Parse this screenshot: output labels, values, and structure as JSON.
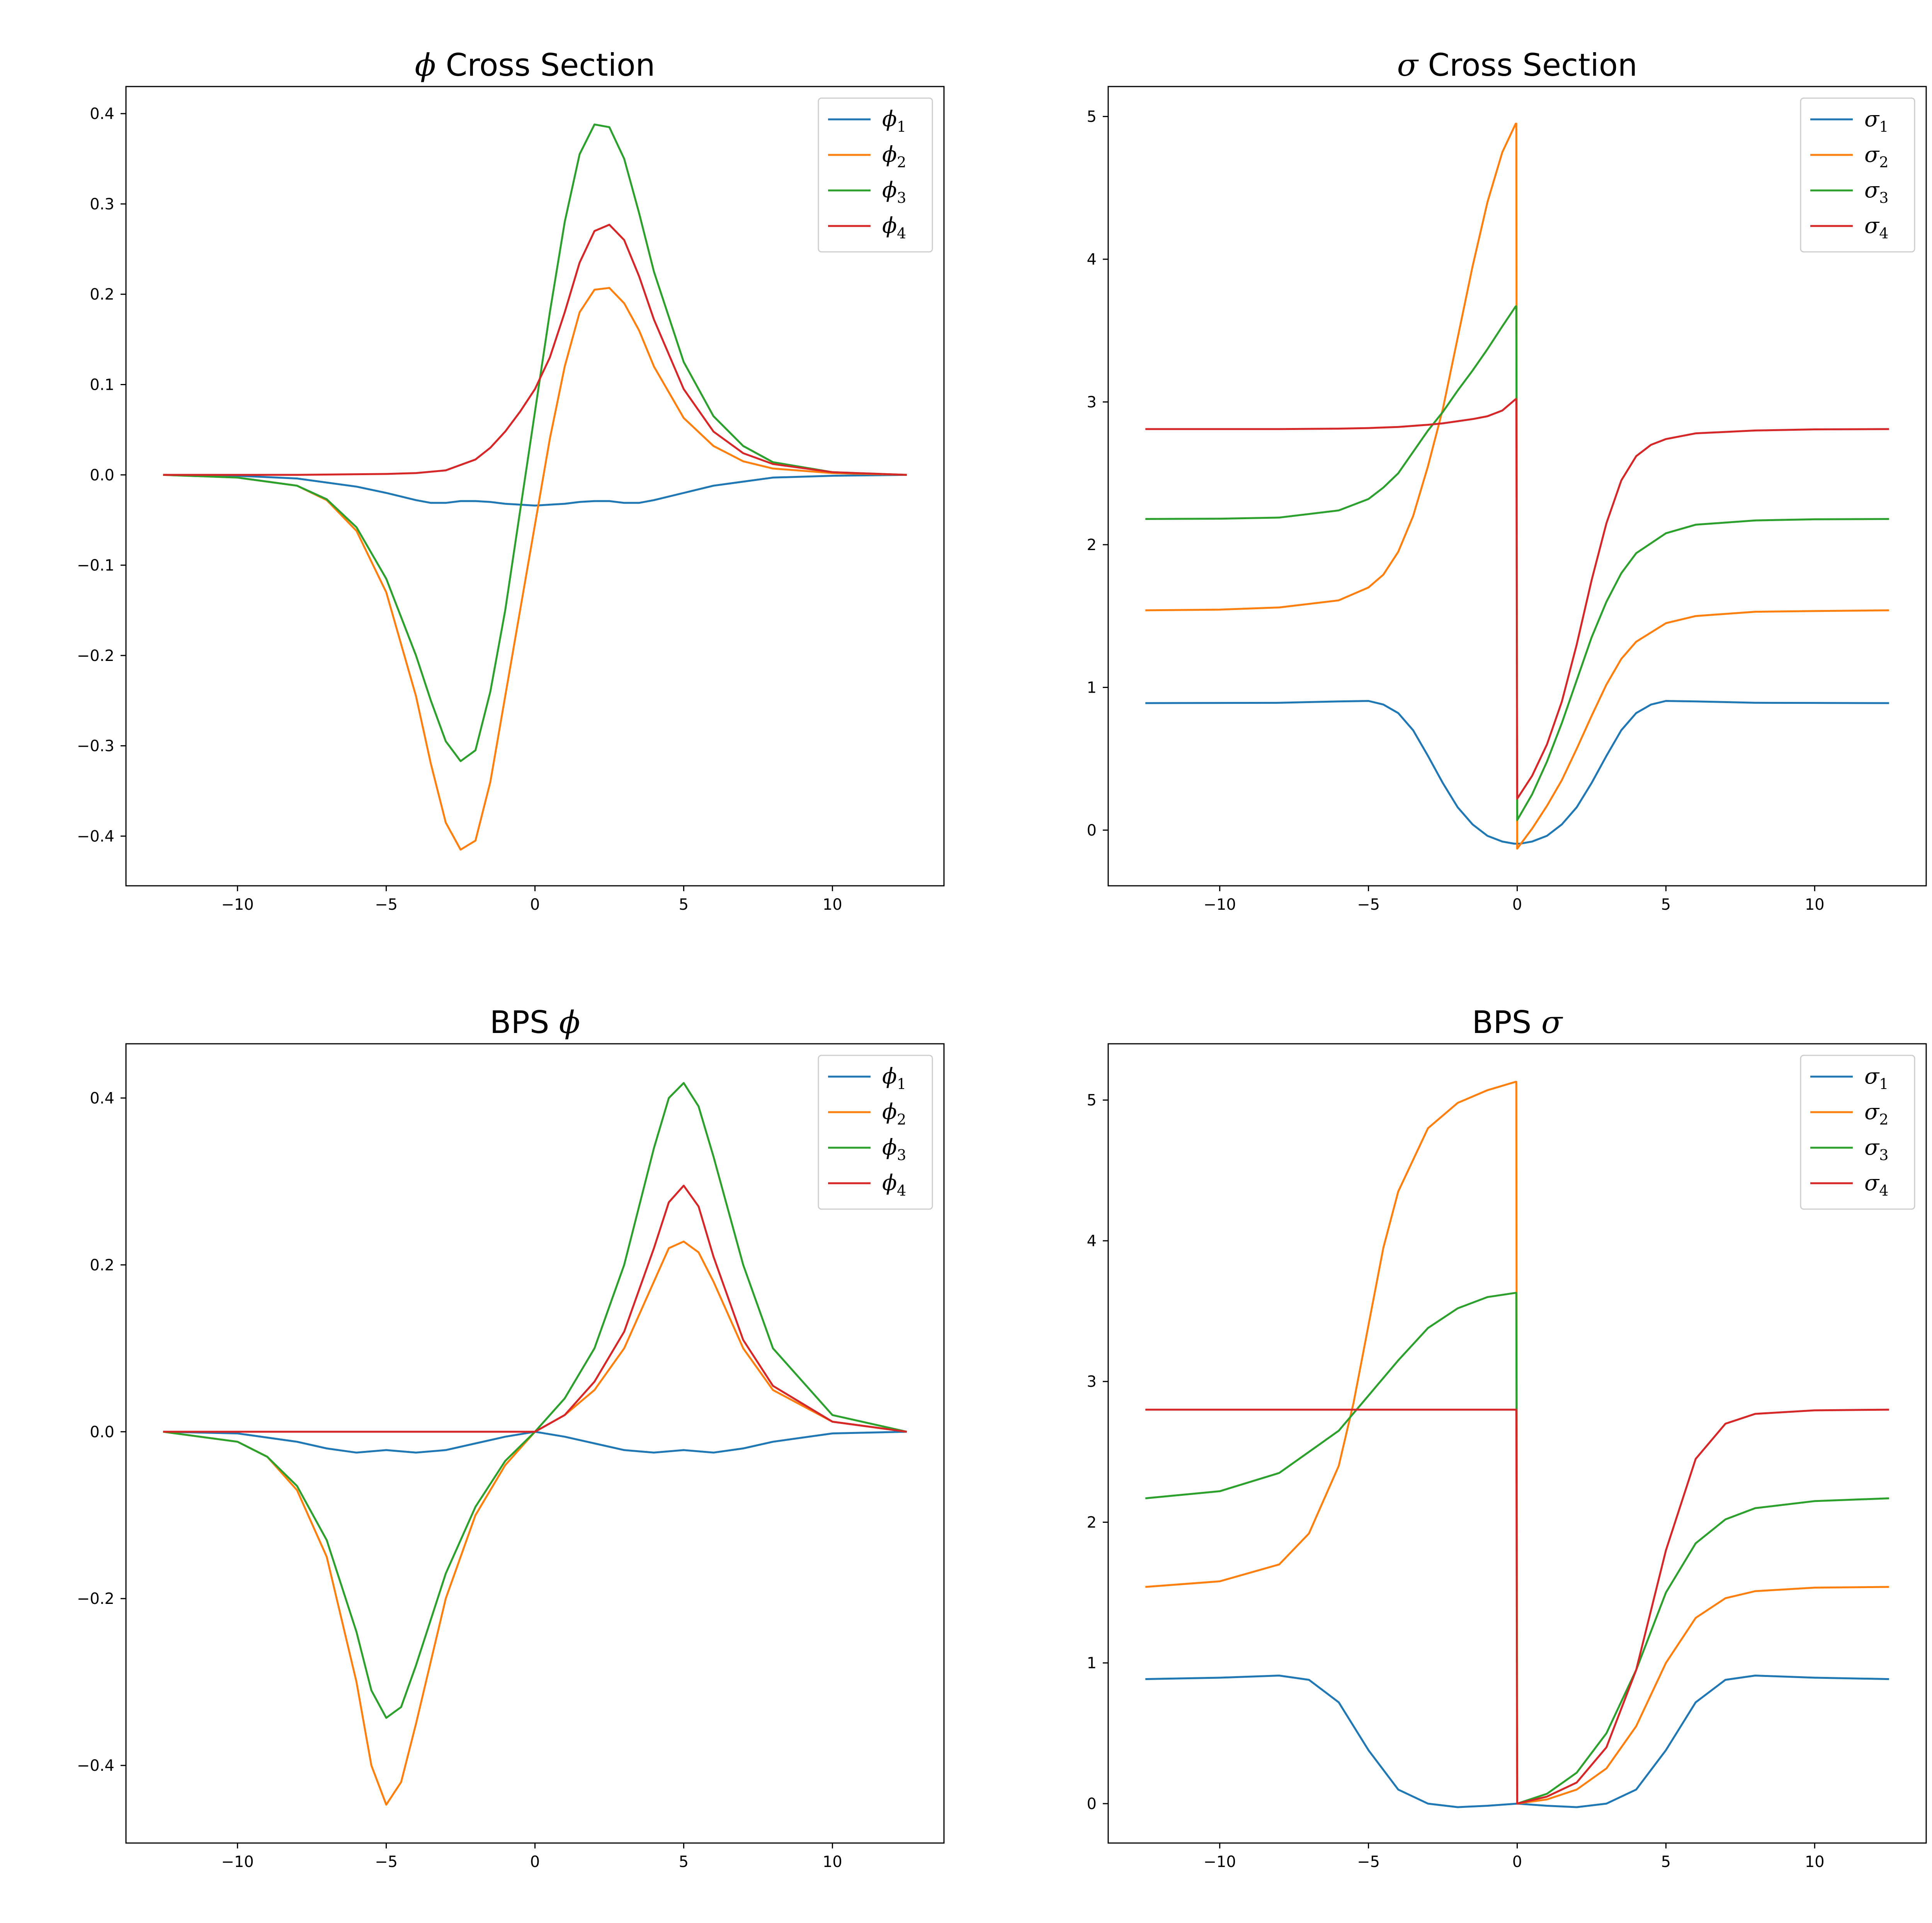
{
  "figure": {
    "colors": [
      "#1f77b4",
      "#ff7f0e",
      "#2ca02c",
      "#d62728"
    ]
  },
  "chart_data": [
    {
      "type": "line",
      "title": "ϕ Cross Section",
      "title_parts": {
        "symbol": "ϕ",
        "text": " Cross Section"
      },
      "xlim": [
        -13.75,
        13.75
      ],
      "ylim": [
        -0.455,
        0.43
      ],
      "xticks": [
        -10,
        -5,
        0,
        5,
        10
      ],
      "xtick_labels": [
        "−10",
        "−5",
        "0",
        "5",
        "10"
      ],
      "yticks": [
        -0.4,
        -0.3,
        -0.2,
        -0.1,
        0.0,
        0.1,
        0.2,
        0.3,
        0.4
      ],
      "ytick_labels": [
        "−0.4",
        "−0.3",
        "−0.2",
        "−0.1",
        "0.0",
        "0.1",
        "0.2",
        "0.3",
        "0.4"
      ],
      "legend_position": "top-right",
      "series": [
        {
          "name": "ϕ1",
          "symbol": "ϕ",
          "sub": "1",
          "x": [
            -12.5,
            -10,
            -8,
            -6,
            -5,
            -4,
            -3.5,
            -3,
            -2.5,
            -2,
            -1.5,
            -1,
            -0.5,
            0,
            0.5,
            1,
            1.5,
            2,
            2.5,
            3,
            3.5,
            4,
            5,
            6,
            8,
            10,
            12.5
          ],
          "y": [
            0,
            -0.001,
            -0.004,
            -0.013,
            -0.02,
            -0.028,
            -0.031,
            -0.031,
            -0.029,
            -0.029,
            -0.03,
            -0.032,
            -0.033,
            -0.034,
            -0.033,
            -0.032,
            -0.03,
            -0.029,
            -0.029,
            -0.031,
            -0.031,
            -0.028,
            -0.02,
            -0.012,
            -0.003,
            -0.001,
            0
          ]
        },
        {
          "name": "ϕ2",
          "symbol": "ϕ",
          "sub": "2",
          "x": [
            -12.5,
            -10,
            -8,
            -7,
            -6,
            -5,
            -4,
            -3.5,
            -3,
            -2.5,
            -2,
            -1.5,
            -1,
            -0.5,
            0,
            0.5,
            1,
            1.5,
            2,
            2.5,
            3,
            3.5,
            4,
            5,
            6,
            7,
            8,
            10,
            12.5
          ],
          "y": [
            0,
            -0.003,
            -0.012,
            -0.028,
            -0.062,
            -0.13,
            -0.245,
            -0.32,
            -0.385,
            -0.415,
            -0.405,
            -0.34,
            -0.245,
            -0.15,
            -0.055,
            0.04,
            0.12,
            0.18,
            0.205,
            0.207,
            0.19,
            0.16,
            0.12,
            0.063,
            0.032,
            0.015,
            0.007,
            0.002,
            0
          ]
        },
        {
          "name": "ϕ3",
          "symbol": "ϕ",
          "sub": "3",
          "x": [
            -12.5,
            -10,
            -8,
            -7,
            -6,
            -5,
            -4,
            -3.5,
            -3,
            -2.5,
            -2,
            -1.5,
            -1,
            -0.5,
            0,
            0.5,
            1,
            1.5,
            2,
            2.5,
            3,
            3.5,
            4,
            5,
            6,
            7,
            8,
            10,
            12.5
          ],
          "y": [
            0,
            -0.003,
            -0.012,
            -0.027,
            -0.058,
            -0.115,
            -0.2,
            -0.25,
            -0.295,
            -0.317,
            -0.305,
            -0.24,
            -0.15,
            -0.04,
            0.07,
            0.18,
            0.28,
            0.355,
            0.388,
            0.385,
            0.35,
            0.29,
            0.225,
            0.125,
            0.065,
            0.032,
            0.014,
            0.003,
            0
          ]
        },
        {
          "name": "ϕ4",
          "symbol": "ϕ",
          "sub": "4",
          "x": [
            -12.5,
            -8,
            -5,
            -4,
            -3,
            -2,
            -1.5,
            -1,
            -0.5,
            0,
            0.5,
            1,
            1.5,
            2,
            2.5,
            3,
            3.5,
            4,
            5,
            6,
            7,
            8,
            10,
            12.5
          ],
          "y": [
            0,
            0,
            0.001,
            0.002,
            0.005,
            0.017,
            0.03,
            0.048,
            0.07,
            0.095,
            0.13,
            0.18,
            0.235,
            0.27,
            0.277,
            0.26,
            0.22,
            0.172,
            0.095,
            0.048,
            0.024,
            0.012,
            0.003,
            0
          ]
        }
      ]
    },
    {
      "type": "line",
      "title": "σ Cross Section",
      "title_parts": {
        "symbol": "σ",
        "text": " Cross Section"
      },
      "xlim": [
        -13.75,
        13.75
      ],
      "ylim": [
        -0.39,
        5.21
      ],
      "xticks": [
        -10,
        -5,
        0,
        5,
        10
      ],
      "xtick_labels": [
        "−10",
        "−5",
        "0",
        "5",
        "10"
      ],
      "yticks": [
        0,
        1,
        2,
        3,
        4,
        5
      ],
      "ytick_labels": [
        "0",
        "1",
        "2",
        "3",
        "4",
        "5"
      ],
      "legend_position": "top-right",
      "series": [
        {
          "name": "σ1",
          "symbol": "σ",
          "sub": "1",
          "x": [
            -12.5,
            -8,
            -6,
            -5,
            -4.5,
            -4,
            -3.5,
            -3,
            -2.5,
            -2,
            -1.5,
            -1,
            -0.5,
            -0.1,
            0.1,
            0.5,
            1,
            1.5,
            2,
            2.5,
            3,
            3.5,
            4,
            4.5,
            5,
            6,
            8,
            12.5
          ],
          "y": [
            0.89,
            0.892,
            0.902,
            0.905,
            0.88,
            0.82,
            0.7,
            0.52,
            0.33,
            0.16,
            0.04,
            -0.04,
            -0.08,
            -0.095,
            -0.095,
            -0.08,
            -0.04,
            0.04,
            0.16,
            0.33,
            0.52,
            0.7,
            0.82,
            0.88,
            0.905,
            0.902,
            0.892,
            0.89
          ]
        },
        {
          "name": "σ2",
          "symbol": "σ",
          "sub": "2",
          "x": [
            -12.5,
            -10,
            -8,
            -6,
            -5,
            -4.5,
            -4,
            -3.5,
            -3,
            -2.5,
            -2,
            -1.5,
            -1,
            -0.5,
            -0.05,
            -0.03,
            0,
            0.5,
            1,
            1.5,
            2,
            2.5,
            3,
            3.5,
            4,
            5,
            6,
            8,
            10,
            12.5
          ],
          "y": [
            1.54,
            1.545,
            1.56,
            1.61,
            1.7,
            1.79,
            1.95,
            2.2,
            2.55,
            2.95,
            3.45,
            3.95,
            4.4,
            4.75,
            4.95,
            4.95,
            -0.13,
            0.01,
            0.17,
            0.35,
            0.57,
            0.8,
            1.02,
            1.2,
            1.32,
            1.45,
            1.5,
            1.53,
            1.535,
            1.54
          ]
        },
        {
          "name": "σ3",
          "symbol": "σ",
          "sub": "3",
          "x": [
            -12.5,
            -10,
            -8,
            -6,
            -5,
            -4.5,
            -4,
            -3.5,
            -3,
            -2.5,
            -2,
            -1.5,
            -1,
            -0.5,
            -0.05,
            -0.03,
            0,
            0.5,
            1,
            1.5,
            2,
            2.5,
            3,
            3.5,
            4,
            5,
            6,
            8,
            10,
            12.5
          ],
          "y": [
            2.18,
            2.182,
            2.19,
            2.24,
            2.32,
            2.4,
            2.5,
            2.65,
            2.8,
            2.93,
            3.08,
            3.22,
            3.37,
            3.53,
            3.67,
            3.67,
            0.07,
            0.25,
            0.48,
            0.75,
            1.05,
            1.35,
            1.6,
            1.8,
            1.94,
            2.08,
            2.14,
            2.17,
            2.178,
            2.18
          ]
        },
        {
          "name": "σ4",
          "symbol": "σ",
          "sub": "4",
          "x": [
            -12.5,
            -10,
            -8,
            -6,
            -5,
            -4,
            -3,
            -2.5,
            -2,
            -1.5,
            -1,
            -0.5,
            -0.05,
            -0.03,
            0,
            0.5,
            1,
            1.5,
            2,
            2.5,
            3,
            3.5,
            4,
            4.5,
            5,
            6,
            8,
            10,
            12.5
          ],
          "y": [
            2.81,
            2.81,
            2.81,
            2.813,
            2.817,
            2.825,
            2.84,
            2.85,
            2.865,
            2.88,
            2.9,
            2.94,
            3.02,
            3.02,
            0.22,
            0.38,
            0.6,
            0.9,
            1.3,
            1.75,
            2.15,
            2.45,
            2.62,
            2.7,
            2.74,
            2.78,
            2.8,
            2.808,
            2.81
          ]
        }
      ]
    },
    {
      "type": "line",
      "title": "BPS ϕ",
      "title_parts": {
        "symbol": "ϕ",
        "text": "BPS "
      },
      "xlim": [
        -13.75,
        13.75
      ],
      "ylim": [
        -0.493,
        0.465
      ],
      "xticks": [
        -10,
        -5,
        0,
        5,
        10
      ],
      "xtick_labels": [
        "−10",
        "−5",
        "0",
        "5",
        "10"
      ],
      "yticks": [
        -0.4,
        -0.2,
        0.0,
        0.2,
        0.4
      ],
      "ytick_labels": [
        "−0.4",
        "−0.2",
        "0.0",
        "0.2",
        "0.4"
      ],
      "legend_position": "top-right",
      "series": [
        {
          "name": "ϕ1",
          "symbol": "ϕ",
          "sub": "1",
          "x": [
            -12.5,
            -10,
            -8,
            -7,
            -6,
            -5,
            -4,
            -3,
            -2,
            -1,
            0,
            1,
            2,
            3,
            4,
            5,
            6,
            7,
            8,
            10,
            12.5
          ],
          "y": [
            0,
            -0.002,
            -0.012,
            -0.02,
            -0.025,
            -0.022,
            -0.025,
            -0.022,
            -0.014,
            -0.006,
            0,
            -0.006,
            -0.014,
            -0.022,
            -0.025,
            -0.022,
            -0.025,
            -0.02,
            -0.012,
            -0.002,
            0
          ]
        },
        {
          "name": "ϕ2",
          "symbol": "ϕ",
          "sub": "2",
          "x": [
            -12.5,
            -10,
            -9,
            -8,
            -7,
            -6,
            -5.5,
            -5,
            -4.5,
            -4,
            -3,
            -2,
            -1,
            0,
            1,
            2,
            3,
            4,
            4.5,
            5,
            5.5,
            6,
            7,
            8,
            10,
            12.5
          ],
          "y": [
            0,
            -0.012,
            -0.03,
            -0.07,
            -0.15,
            -0.3,
            -0.4,
            -0.447,
            -0.42,
            -0.35,
            -0.2,
            -0.1,
            -0.04,
            0,
            0.02,
            0.05,
            0.1,
            0.18,
            0.22,
            0.228,
            0.215,
            0.18,
            0.1,
            0.05,
            0.012,
            0
          ]
        },
        {
          "name": "ϕ3",
          "symbol": "ϕ",
          "sub": "3",
          "x": [
            -12.5,
            -10,
            -9,
            -8,
            -7,
            -6,
            -5.5,
            -5,
            -4.5,
            -4,
            -3,
            -2,
            -1,
            0,
            1,
            2,
            3,
            4,
            4.5,
            5,
            5.5,
            6,
            7,
            8,
            10,
            12.5
          ],
          "y": [
            0,
            -0.012,
            -0.03,
            -0.065,
            -0.13,
            -0.24,
            -0.31,
            -0.343,
            -0.33,
            -0.28,
            -0.17,
            -0.09,
            -0.035,
            0,
            0.04,
            0.1,
            0.2,
            0.34,
            0.4,
            0.418,
            0.39,
            0.33,
            0.2,
            0.1,
            0.02,
            0
          ]
        },
        {
          "name": "ϕ4",
          "symbol": "ϕ",
          "sub": "4",
          "x": [
            -12.5,
            -10,
            -5,
            -2,
            0,
            1,
            2,
            3,
            4,
            4.5,
            5,
            5.5,
            6,
            7,
            8,
            10,
            12.5
          ],
          "y": [
            0,
            0,
            0,
            0,
            0,
            0.02,
            0.06,
            0.12,
            0.22,
            0.275,
            0.295,
            0.27,
            0.21,
            0.11,
            0.055,
            0.012,
            0
          ]
        }
      ]
    },
    {
      "type": "line",
      "title": "BPS σ",
      "title_parts": {
        "symbol": "σ",
        "text": "BPS "
      },
      "xlim": [
        -13.75,
        13.75
      ],
      "ylim": [
        -0.28,
        5.4
      ],
      "xticks": [
        -10,
        -5,
        0,
        5,
        10
      ],
      "xtick_labels": [
        "−10",
        "−5",
        "0",
        "5",
        "10"
      ],
      "yticks": [
        0,
        1,
        2,
        3,
        4,
        5
      ],
      "ytick_labels": [
        "0",
        "1",
        "2",
        "3",
        "4",
        "5"
      ],
      "legend_position": "top-right",
      "series": [
        {
          "name": "σ1",
          "symbol": "σ",
          "sub": "1",
          "x": [
            -12.5,
            -10,
            -8,
            -7,
            -6,
            -5,
            -4,
            -3,
            -2,
            -1,
            0,
            1,
            2,
            3,
            4,
            5,
            6,
            7,
            8,
            10,
            12.5
          ],
          "y": [
            0.885,
            0.895,
            0.91,
            0.88,
            0.72,
            0.38,
            0.1,
            0.0,
            -0.025,
            -0.015,
            0,
            -0.015,
            -0.025,
            0.0,
            0.1,
            0.38,
            0.72,
            0.88,
            0.91,
            0.895,
            0.885
          ]
        },
        {
          "name": "σ2",
          "symbol": "σ",
          "sub": "2",
          "x": [
            -12.5,
            -10,
            -8,
            -7,
            -6,
            -5.5,
            -5,
            -4.5,
            -4,
            -3,
            -2,
            -1,
            -0.05,
            -0.03,
            0,
            1,
            2,
            3,
            4,
            5,
            6,
            7,
            8,
            10,
            12.5
          ],
          "y": [
            1.54,
            1.58,
            1.7,
            1.92,
            2.4,
            2.85,
            3.4,
            3.95,
            4.35,
            4.8,
            4.98,
            5.07,
            5.13,
            5.13,
            0,
            0.03,
            0.1,
            0.25,
            0.55,
            1.0,
            1.32,
            1.46,
            1.51,
            1.535,
            1.54
          ]
        },
        {
          "name": "σ3",
          "symbol": "σ",
          "sub": "3",
          "x": [
            -12.5,
            -10,
            -8,
            -7,
            -6,
            -5,
            -4,
            -3,
            -2,
            -1,
            -0.05,
            -0.03,
            0,
            1,
            2,
            3,
            4,
            5,
            6,
            7,
            8,
            10,
            12.5
          ],
          "y": [
            2.17,
            2.22,
            2.35,
            2.5,
            2.65,
            2.9,
            3.15,
            3.38,
            3.52,
            3.6,
            3.63,
            3.63,
            0,
            0.07,
            0.22,
            0.5,
            0.95,
            1.5,
            1.85,
            2.02,
            2.1,
            2.15,
            2.17
          ]
        },
        {
          "name": "σ4",
          "symbol": "σ",
          "sub": "4",
          "x": [
            -12.5,
            -10,
            -5,
            -2,
            -0.05,
            -0.03,
            0,
            1,
            2,
            3,
            4,
            5,
            6,
            7,
            8,
            10,
            12.5
          ],
          "y": [
            2.8,
            2.8,
            2.8,
            2.8,
            2.8,
            2.8,
            0,
            0.05,
            0.15,
            0.4,
            0.95,
            1.8,
            2.45,
            2.7,
            2.77,
            2.795,
            2.8
          ]
        }
      ]
    }
  ]
}
